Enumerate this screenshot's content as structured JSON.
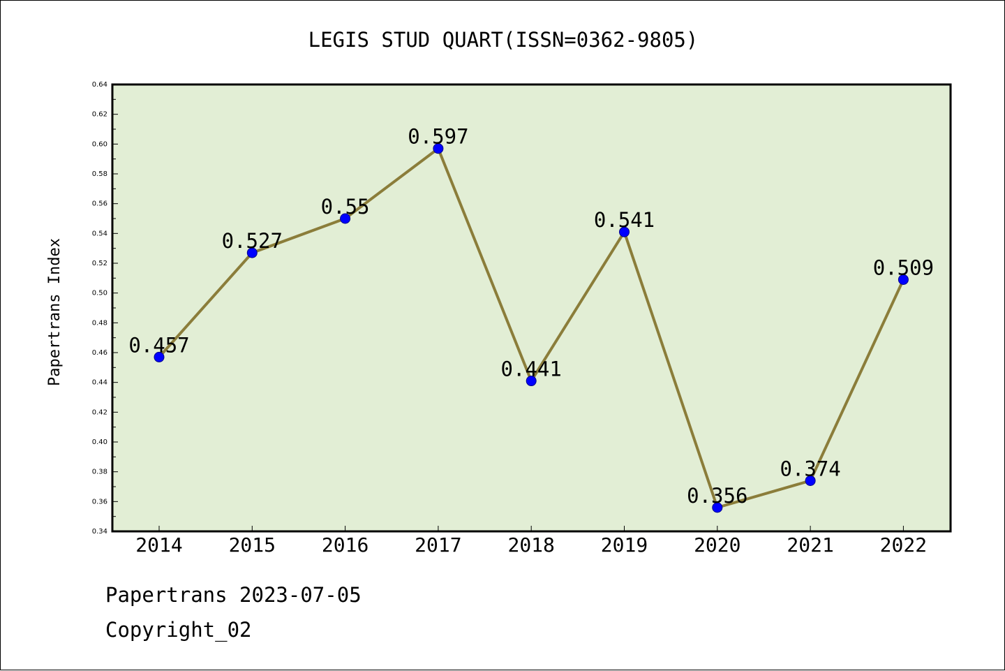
{
  "chart_data": {
    "type": "line",
    "title": "LEGIS STUD QUART(ISSN=0362-9805)",
    "xlabel": "",
    "ylabel": "Papertrans Index",
    "categories": [
      "2014",
      "2015",
      "2016",
      "2017",
      "2018",
      "2019",
      "2020",
      "2021",
      "2022"
    ],
    "series": [
      {
        "values": [
          0.457,
          0.527,
          0.55,
          0.597,
          0.441,
          0.541,
          0.356,
          0.374,
          0.509
        ]
      }
    ],
    "data_labels": [
      "0.457",
      "0.527",
      "0.55",
      "0.597",
      "0.441",
      "0.541",
      "0.356",
      "0.374",
      "0.509"
    ],
    "ylim": [
      0.34,
      0.64
    ],
    "yticks": [
      "0.34",
      "0.36",
      "0.38",
      "0.40",
      "0.42",
      "0.44",
      "0.46",
      "0.48",
      "0.50",
      "0.52",
      "0.54",
      "0.56",
      "0.58",
      "0.60",
      "0.62",
      "0.64"
    ],
    "grid": false,
    "legend": "none",
    "colors": {
      "plot_background": "#e2eed5",
      "line": "#8b7d3a",
      "marker_fill": "#0000ff",
      "marker_edge": "#00008b",
      "axis": "#000000"
    }
  },
  "footer": {
    "line1": "Papertrans 2023-07-05",
    "line2": "Copyright_02"
  }
}
